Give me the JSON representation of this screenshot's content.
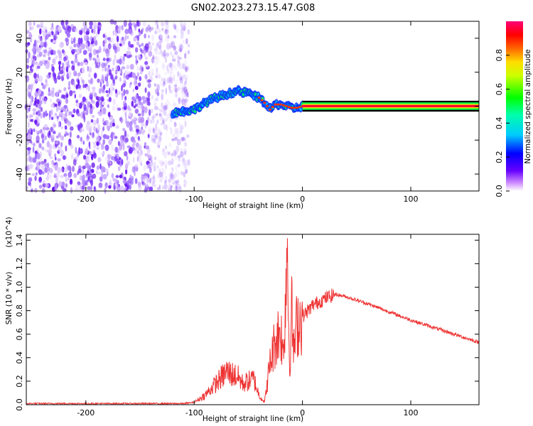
{
  "title": "GN02.2023.273.15.47.G08",
  "chart_data": [
    {
      "type": "heatmap",
      "title": "GN02.2023.273.15.47.G08",
      "xlabel": "Height of straight line (km)",
      "ylabel": "Frequency (Hz)",
      "xlim": [
        -255,
        163
      ],
      "ylim": [
        -50,
        50
      ],
      "xticks": [
        -200,
        -100,
        0,
        100
      ],
      "yticks": [
        -40,
        -20,
        0,
        20,
        40
      ],
      "colorbar": {
        "label": "Normalized spectral amplitude",
        "ticks": [
          0.0,
          0.2,
          0.4,
          0.6,
          0.8
        ],
        "range": [
          0,
          1
        ]
      },
      "ridge": {
        "x": [
          -120,
          -110,
          -100,
          -90,
          -80,
          -70,
          -60,
          -55,
          -50,
          -45,
          -40,
          -35,
          -30,
          -25,
          -20,
          -15,
          -10,
          -5,
          0,
          163
        ],
        "y": [
          -4,
          -3,
          -2,
          2,
          5,
          7,
          9,
          8,
          8,
          6,
          5,
          2,
          -2,
          1,
          1,
          0,
          -1,
          -1,
          0,
          0
        ]
      }
    },
    {
      "type": "line",
      "xlabel": "Height of straight line (km)",
      "ylabel": "SNR (10 * v/v)",
      "y_multiplier": "(x10^4)",
      "xlim": [
        -255,
        163
      ],
      "ylim": [
        0.0,
        1.45
      ],
      "xticks": [
        -200,
        -100,
        0,
        100
      ],
      "yticks": [
        0.0,
        0.2,
        0.4,
        0.6,
        0.8,
        1.0,
        1.2,
        1.4
      ],
      "color": "#ee3333",
      "x": [
        -255,
        -200,
        -150,
        -110,
        -100,
        -90,
        -80,
        -70,
        -60,
        -55,
        -50,
        -45,
        -40,
        -35,
        -30,
        -25,
        -20,
        -18,
        -16,
        -14,
        -12,
        -10,
        -8,
        -5,
        0,
        5,
        10,
        20,
        30,
        40,
        60,
        80,
        100,
        120,
        140,
        163
      ],
      "y": [
        0.01,
        0.01,
        0.01,
        0.01,
        0.02,
        0.08,
        0.18,
        0.28,
        0.24,
        0.18,
        0.2,
        0.22,
        0.08,
        0.02,
        0.35,
        0.55,
        0.65,
        0.4,
        0.8,
        1.45,
        0.3,
        0.8,
        0.45,
        0.7,
        0.75,
        0.8,
        0.85,
        0.9,
        0.94,
        0.92,
        0.86,
        0.79,
        0.72,
        0.66,
        0.6,
        0.53
      ]
    }
  ]
}
